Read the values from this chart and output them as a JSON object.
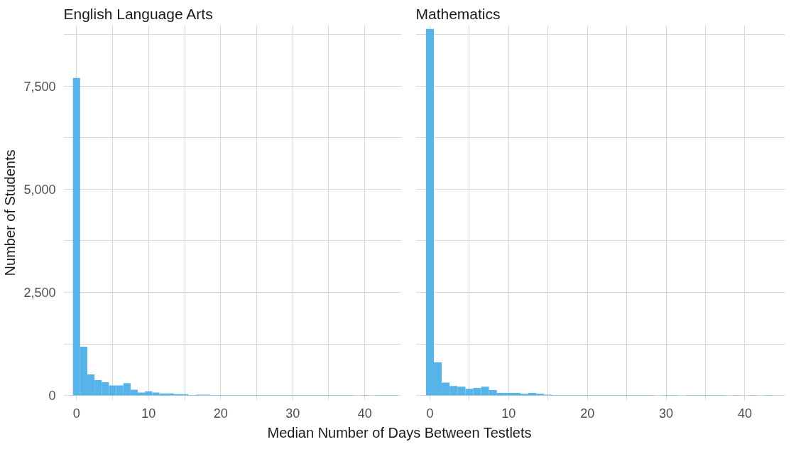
{
  "chart_data": [
    {
      "type": "histogram",
      "title": "English Language Arts",
      "xlabel": "Median Number of Days Between Testlets",
      "ylabel": "Number of Students",
      "color": "#56b4e9",
      "bins": [
        -0.5,
        0.5,
        1.5,
        2.5,
        3.5,
        4.5,
        5.5,
        6.5,
        7.5,
        8.5,
        9.5,
        10.5,
        11.5,
        12.5,
        13.5,
        14.5,
        15.5,
        16.5,
        17.5,
        18.5,
        19.5,
        20.5,
        21.5,
        22.5,
        23.5,
        24.5,
        25.5,
        26.5,
        27.5,
        28.5,
        29.5,
        30.5,
        31.5,
        32.5,
        33.5,
        34.5,
        35.5,
        36.5,
        37.5,
        38.5,
        39.5,
        40.5,
        41.5,
        42.5,
        43.5,
        44.5
      ],
      "values": [
        7700,
        1180,
        510,
        370,
        320,
        240,
        240,
        300,
        140,
        70,
        100,
        70,
        50,
        50,
        30,
        30,
        10,
        20,
        20,
        10,
        10,
        10,
        10,
        10,
        10,
        10,
        10,
        10,
        10,
        10,
        10,
        10,
        10,
        10,
        10,
        10,
        10,
        10,
        10,
        0,
        10,
        0,
        10,
        10,
        10
      ],
      "xlim": [
        -1.8,
        45.1
      ],
      "xticks": [
        0,
        {
          "value": 5,
          "label": null
        },
        10,
        {
          "value": 15,
          "label": null
        },
        20,
        {
          "value": 25,
          "label": null
        },
        30,
        {
          "value": 35,
          "label": null
        },
        40
      ],
      "ylim": [
        -120,
        8980
      ],
      "yticks": [
        0,
        {
          "value": 1250,
          "label": null
        },
        {
          "value": 2500,
          "label": "2,500"
        },
        {
          "value": 3750,
          "label": null
        },
        {
          "value": 5000,
          "label": "5,000"
        },
        {
          "value": 6250,
          "label": null
        },
        {
          "value": 7500,
          "label": "7,500"
        },
        {
          "value": 8750,
          "label": null
        }
      ],
      "grid": true
    },
    {
      "type": "histogram",
      "title": "Mathematics",
      "color": "#56b4e9",
      "bins": [
        -0.5,
        0.5,
        1.5,
        2.5,
        3.5,
        4.5,
        5.5,
        6.5,
        7.5,
        8.5,
        9.5,
        10.5,
        11.5,
        12.5,
        13.5,
        14.5,
        15.5,
        16.5,
        17.5,
        18.5,
        19.5,
        20.5,
        21.5,
        22.5,
        23.5,
        24.5,
        25.5,
        26.5,
        27.5,
        28.5,
        29.5,
        30.5,
        31.5,
        32.5,
        33.5,
        34.5,
        35.5,
        36.5,
        37.5,
        38.5,
        39.5,
        40.5,
        41.5,
        42.5,
        43.5,
        44.5
      ],
      "values": [
        8890,
        800,
        310,
        230,
        210,
        160,
        180,
        210,
        130,
        60,
        60,
        60,
        40,
        60,
        40,
        20,
        10,
        10,
        10,
        10,
        10,
        10,
        10,
        10,
        10,
        10,
        10,
        10,
        10,
        0,
        10,
        10,
        0,
        10,
        10,
        10,
        10,
        10,
        0,
        10,
        0,
        10,
        0,
        10,
        0
      ],
      "xlim": [
        -1.8,
        45.1
      ],
      "xticks": [
        0,
        {
          "value": 5,
          "label": null
        },
        10,
        {
          "value": 15,
          "label": null
        },
        20,
        {
          "value": 25,
          "label": null
        },
        30,
        {
          "value": 35,
          "label": null
        },
        40
      ],
      "ylim": [
        -120,
        8980
      ],
      "yticks": [
        {
          "value": 0,
          "label": null
        },
        {
          "value": 1250,
          "label": null
        },
        {
          "value": 2500,
          "label": null
        },
        {
          "value": 3750,
          "label": null
        },
        {
          "value": 5000,
          "label": null
        },
        {
          "value": 6250,
          "label": null
        },
        {
          "value": 7500,
          "label": null
        },
        {
          "value": 8750,
          "label": null
        }
      ],
      "grid": true,
      "tick_labels": "x"
    }
  ]
}
